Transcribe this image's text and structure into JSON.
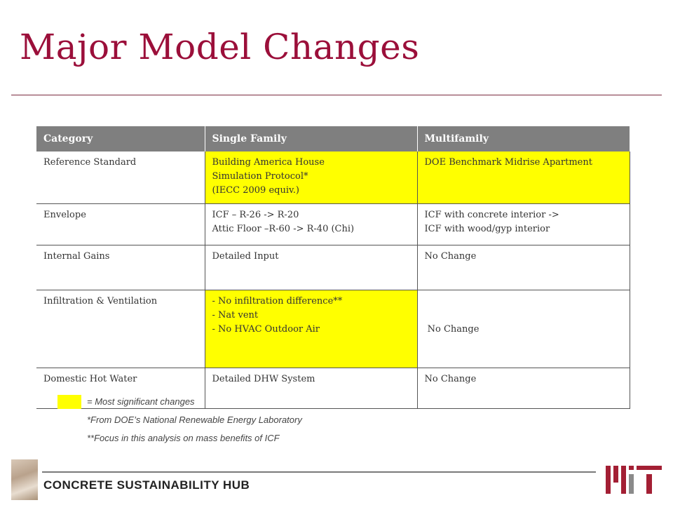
{
  "slide": {
    "title": "Major Model Changes"
  },
  "table": {
    "headers": [
      "Category",
      "Single Family",
      "Multifamily"
    ],
    "rows": [
      {
        "category": "Reference Standard",
        "single_family": [
          "Building America House",
          "Simulation Protocol*",
          "(IECC 2009 equiv.)"
        ],
        "multifamily": [
          "DOE Benchmark Midrise Apartment"
        ]
      },
      {
        "category": "Envelope",
        "single_family": [
          "ICF – R-26 -> R-20",
          "Attic Floor –R-60 -> R-40 (Chi)"
        ],
        "multifamily": [
          "ICF with concrete interior ->",
          "ICF with wood/gyp interior"
        ]
      },
      {
        "category": "Internal Gains",
        "single_family": [
          "Detailed Input"
        ],
        "multifamily": [
          "No Change"
        ]
      },
      {
        "category": "Infiltration & Ventilation",
        "single_family": [
          "- No infiltration difference**",
          "- Nat vent",
          "- No HVAC Outdoor Air"
        ],
        "multifamily": [
          " No Change"
        ]
      },
      {
        "category": "Domestic Hot Water",
        "single_family": [
          "Detailed DHW System"
        ],
        "multifamily": [
          "No Change"
        ]
      }
    ]
  },
  "notes": {
    "legend": "= Most significant changes",
    "footnote1": "*From DOE’s National Renewable Energy Laboratory",
    "footnote2": "**Focus in this analysis on mass benefits of ICF"
  },
  "footer": {
    "label": "CONCRETE SUSTAINABILITY HUB"
  },
  "colors": {
    "title": "#9b0f3a",
    "highlight": "#ffff00",
    "header_bg": "#7f7f7f",
    "logo": "#a31f34"
  },
  "icons": {
    "footer_image": "concrete-footprint-image",
    "logo": "mit-logo"
  }
}
